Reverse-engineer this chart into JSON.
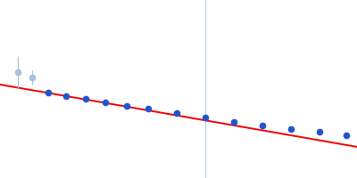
{
  "background_color": "#ffffff",
  "figsize": [
    4.0,
    2.0
  ],
  "dpi": 100,
  "xlim": [
    0.0,
    1.0
  ],
  "ylim": [
    0.0,
    1.0
  ],
  "vertical_line_x": 0.575,
  "vertical_line_color": "#b8d0e8",
  "vertical_line_linewidth": 0.8,
  "fit_line": {
    "x": [
      0.0,
      1.0
    ],
    "y": [
      0.525,
      0.175
    ],
    "color": "#ee0000",
    "linewidth": 1.4
  },
  "excluded_points": {
    "x": [
      0.05,
      0.09
    ],
    "y": [
      0.595,
      0.565
    ],
    "yerr": [
      0.09,
      0.04
    ],
    "color": "#a8c0d8",
    "markersize": 4.5
  },
  "included_points": {
    "x": [
      0.135,
      0.185,
      0.24,
      0.295,
      0.355,
      0.415,
      0.495,
      0.575,
      0.655,
      0.735,
      0.815,
      0.895,
      0.97
    ],
    "y": [
      0.478,
      0.46,
      0.443,
      0.425,
      0.407,
      0.388,
      0.363,
      0.34,
      0.315,
      0.295,
      0.275,
      0.258,
      0.24
    ],
    "color": "#2255cc",
    "markersize": 4.5
  }
}
